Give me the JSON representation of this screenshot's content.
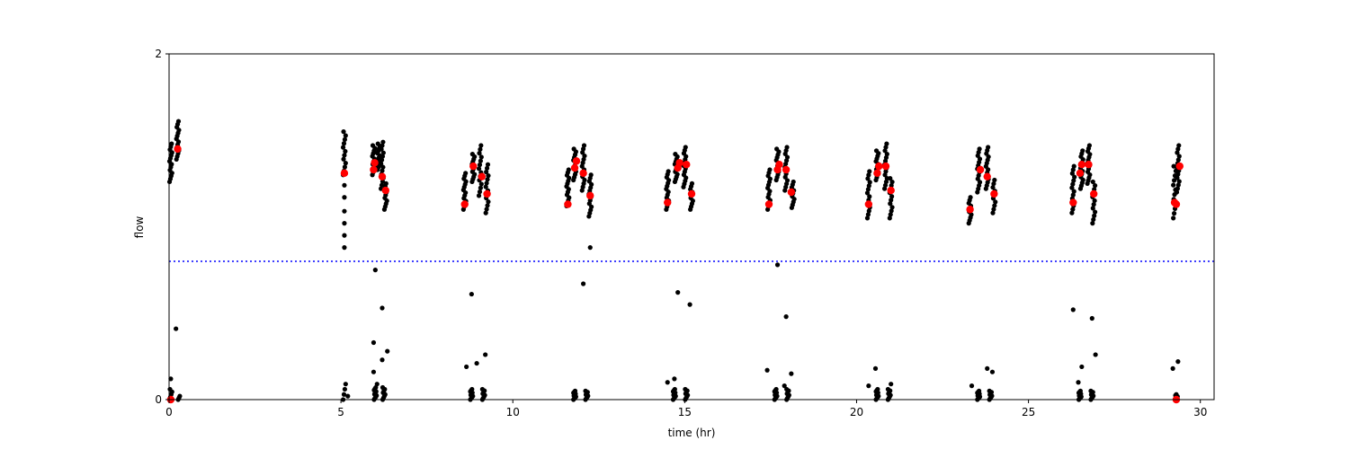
{
  "chart_data": {
    "type": "scatter",
    "xlabel": "time (hr)",
    "ylabel": "flow",
    "xlim": [
      0,
      30.4
    ],
    "ylim": [
      0,
      2
    ],
    "xticks": [
      0,
      5,
      10,
      15,
      20,
      25,
      30
    ],
    "yticks": [
      0,
      2
    ],
    "grid": false,
    "colors": {
      "points": "#000000",
      "markers": "#ff0000",
      "threshold": "#0000ff"
    },
    "threshold_y": 0.8,
    "series": [
      {
        "style": "black-dots",
        "clusters": [
          {
            "x": 0.05,
            "y_min": 1.26,
            "y_max": 1.48,
            "n": 14
          },
          {
            "x": 0.25,
            "y_min": 1.39,
            "y_max": 1.61,
            "n": 14
          },
          {
            "x": 5.1,
            "y_min": 1.3,
            "y_max": 1.55,
            "n": 12
          },
          {
            "x": 5.95,
            "y_min": 1.3,
            "y_max": 1.47,
            "n": 12
          },
          {
            "x": 6.1,
            "y_min": 1.33,
            "y_max": 1.48,
            "n": 12
          },
          {
            "x": 6.2,
            "y_min": 1.22,
            "y_max": 1.49,
            "n": 14
          },
          {
            "x": 6.3,
            "y_min": 1.1,
            "y_max": 1.25,
            "n": 10
          },
          {
            "x": 8.6,
            "y_min": 1.1,
            "y_max": 1.31,
            "n": 14
          },
          {
            "x": 8.85,
            "y_min": 1.26,
            "y_max": 1.42,
            "n": 12
          },
          {
            "x": 9.05,
            "y_min": 1.18,
            "y_max": 1.47,
            "n": 14
          },
          {
            "x": 9.25,
            "y_min": 1.08,
            "y_max": 1.36,
            "n": 14
          },
          {
            "x": 11.6,
            "y_min": 1.12,
            "y_max": 1.33,
            "n": 14
          },
          {
            "x": 11.8,
            "y_min": 1.27,
            "y_max": 1.45,
            "n": 12
          },
          {
            "x": 12.05,
            "y_min": 1.21,
            "y_max": 1.47,
            "n": 14
          },
          {
            "x": 12.25,
            "y_min": 1.06,
            "y_max": 1.3,
            "n": 14
          },
          {
            "x": 14.5,
            "y_min": 1.1,
            "y_max": 1.32,
            "n": 14
          },
          {
            "x": 14.75,
            "y_min": 1.26,
            "y_max": 1.42,
            "n": 12
          },
          {
            "x": 15.0,
            "y_min": 1.23,
            "y_max": 1.46,
            "n": 14
          },
          {
            "x": 15.2,
            "y_min": 1.1,
            "y_max": 1.25,
            "n": 10
          },
          {
            "x": 17.45,
            "y_min": 1.1,
            "y_max": 1.33,
            "n": 14
          },
          {
            "x": 17.7,
            "y_min": 1.27,
            "y_max": 1.45,
            "n": 12
          },
          {
            "x": 17.95,
            "y_min": 1.21,
            "y_max": 1.46,
            "n": 14
          },
          {
            "x": 18.15,
            "y_min": 1.11,
            "y_max": 1.26,
            "n": 10
          },
          {
            "x": 20.35,
            "y_min": 1.05,
            "y_max": 1.32,
            "n": 14
          },
          {
            "x": 20.6,
            "y_min": 1.27,
            "y_max": 1.44,
            "n": 12
          },
          {
            "x": 20.85,
            "y_min": 1.22,
            "y_max": 1.48,
            "n": 14
          },
          {
            "x": 21.0,
            "y_min": 1.05,
            "y_max": 1.28,
            "n": 12
          },
          {
            "x": 23.3,
            "y_min": 1.02,
            "y_max": 1.17,
            "n": 10
          },
          {
            "x": 23.55,
            "y_min": 1.2,
            "y_max": 1.45,
            "n": 14
          },
          {
            "x": 23.8,
            "y_min": 1.22,
            "y_max": 1.46,
            "n": 14
          },
          {
            "x": 24.0,
            "y_min": 1.08,
            "y_max": 1.27,
            "n": 10
          },
          {
            "x": 26.3,
            "y_min": 1.08,
            "y_max": 1.35,
            "n": 14
          },
          {
            "x": 26.55,
            "y_min": 1.22,
            "y_max": 1.44,
            "n": 14
          },
          {
            "x": 26.75,
            "y_min": 1.25,
            "y_max": 1.47,
            "n": 14
          },
          {
            "x": 26.9,
            "y_min": 1.02,
            "y_max": 1.26,
            "n": 12
          },
          {
            "x": 29.25,
            "y_min": 1.05,
            "y_max": 1.35,
            "n": 12
          },
          {
            "x": 29.35,
            "y_min": 1.2,
            "y_max": 1.47,
            "n": 14
          }
        ],
        "low_clusters": [
          {
            "x": 0.05,
            "y_min": 0.0,
            "y_max": 0.06,
            "n": 5
          },
          {
            "x": 0.3,
            "y_min": 0.0,
            "y_max": 0.02,
            "n": 3
          },
          {
            "x": 5.1,
            "y_min": 0.0,
            "y_max": 0.09,
            "n": 4
          },
          {
            "x": 6.0,
            "y_min": 0.0,
            "y_max": 0.07,
            "n": 10
          },
          {
            "x": 6.25,
            "y_min": 0.0,
            "y_max": 0.07,
            "n": 8
          },
          {
            "x": 8.8,
            "y_min": 0.0,
            "y_max": 0.06,
            "n": 10
          },
          {
            "x": 9.15,
            "y_min": 0.0,
            "y_max": 0.06,
            "n": 8
          },
          {
            "x": 11.8,
            "y_min": 0.0,
            "y_max": 0.05,
            "n": 10
          },
          {
            "x": 12.15,
            "y_min": 0.0,
            "y_max": 0.05,
            "n": 8
          },
          {
            "x": 14.7,
            "y_min": 0.0,
            "y_max": 0.06,
            "n": 10
          },
          {
            "x": 15.05,
            "y_min": 0.0,
            "y_max": 0.06,
            "n": 8
          },
          {
            "x": 17.65,
            "y_min": 0.0,
            "y_max": 0.06,
            "n": 10
          },
          {
            "x": 18.0,
            "y_min": 0.0,
            "y_max": 0.06,
            "n": 8
          },
          {
            "x": 20.6,
            "y_min": 0.0,
            "y_max": 0.06,
            "n": 10
          },
          {
            "x": 20.95,
            "y_min": 0.0,
            "y_max": 0.06,
            "n": 8
          },
          {
            "x": 23.55,
            "y_min": 0.0,
            "y_max": 0.05,
            "n": 10
          },
          {
            "x": 23.9,
            "y_min": 0.0,
            "y_max": 0.05,
            "n": 8
          },
          {
            "x": 26.5,
            "y_min": 0.0,
            "y_max": 0.05,
            "n": 10
          },
          {
            "x": 26.85,
            "y_min": 0.0,
            "y_max": 0.05,
            "n": 8
          },
          {
            "x": 29.3,
            "y_min": 0.0,
            "y_max": 0.03,
            "n": 6
          }
        ],
        "points": [
          [
            0.05,
            0.12
          ],
          [
            0.2,
            0.41
          ],
          [
            5.1,
            0.88
          ],
          [
            5.1,
            0.95
          ],
          [
            5.1,
            1.02
          ],
          [
            5.1,
            1.09
          ],
          [
            5.1,
            1.17
          ],
          [
            5.1,
            1.24
          ],
          [
            5.2,
            0.02
          ],
          [
            5.95,
            0.33
          ],
          [
            6.0,
            0.75
          ],
          [
            6.2,
            0.53
          ],
          [
            6.2,
            0.23
          ],
          [
            6.35,
            0.28
          ],
          [
            5.95,
            0.16
          ],
          [
            6.05,
            0.09
          ],
          [
            8.8,
            0.61
          ],
          [
            8.65,
            0.19
          ],
          [
            8.95,
            0.21
          ],
          [
            9.2,
            0.26
          ],
          [
            12.05,
            0.67
          ],
          [
            12.25,
            0.88
          ],
          [
            14.8,
            0.62
          ],
          [
            15.15,
            0.55
          ],
          [
            14.7,
            0.12
          ],
          [
            14.5,
            0.1
          ],
          [
            17.7,
            0.78
          ],
          [
            17.95,
            0.48
          ],
          [
            17.4,
            0.17
          ],
          [
            18.1,
            0.15
          ],
          [
            17.9,
            0.08
          ],
          [
            20.55,
            0.18
          ],
          [
            20.35,
            0.08
          ],
          [
            21.0,
            0.09
          ],
          [
            23.35,
            0.08
          ],
          [
            23.8,
            0.18
          ],
          [
            23.95,
            0.16
          ],
          [
            26.3,
            0.52
          ],
          [
            26.85,
            0.47
          ],
          [
            26.55,
            0.19
          ],
          [
            26.95,
            0.26
          ],
          [
            26.45,
            0.1
          ],
          [
            29.2,
            0.18
          ],
          [
            29.35,
            0.22
          ]
        ]
      },
      {
        "style": "red-markers",
        "points": [
          [
            0.05,
            0.0
          ],
          [
            0.25,
            1.45
          ],
          [
            5.1,
            1.31
          ],
          [
            5.95,
            1.33
          ],
          [
            5.98,
            1.37
          ],
          [
            6.2,
            1.29
          ],
          [
            6.3,
            1.21
          ],
          [
            8.6,
            1.13
          ],
          [
            8.85,
            1.35
          ],
          [
            9.1,
            1.29
          ],
          [
            9.25,
            1.19
          ],
          [
            11.6,
            1.13
          ],
          [
            11.8,
            1.34
          ],
          [
            11.85,
            1.38
          ],
          [
            12.05,
            1.31
          ],
          [
            12.25,
            1.18
          ],
          [
            14.5,
            1.14
          ],
          [
            14.8,
            1.34
          ],
          [
            14.85,
            1.37
          ],
          [
            15.05,
            1.36
          ],
          [
            15.2,
            1.19
          ],
          [
            17.45,
            1.13
          ],
          [
            17.7,
            1.33
          ],
          [
            17.75,
            1.36
          ],
          [
            17.95,
            1.33
          ],
          [
            18.1,
            1.2
          ],
          [
            20.35,
            1.13
          ],
          [
            20.6,
            1.31
          ],
          [
            20.65,
            1.35
          ],
          [
            20.85,
            1.35
          ],
          [
            21.0,
            1.21
          ],
          [
            23.3,
            1.1
          ],
          [
            23.6,
            1.33
          ],
          [
            23.8,
            1.29
          ],
          [
            24.0,
            1.19
          ],
          [
            26.3,
            1.14
          ],
          [
            26.5,
            1.31
          ],
          [
            26.55,
            1.36
          ],
          [
            26.75,
            1.36
          ],
          [
            26.9,
            1.19
          ],
          [
            29.25,
            1.14
          ],
          [
            29.3,
            1.13
          ],
          [
            29.4,
            1.35
          ],
          [
            29.3,
            0.0
          ]
        ]
      }
    ]
  }
}
